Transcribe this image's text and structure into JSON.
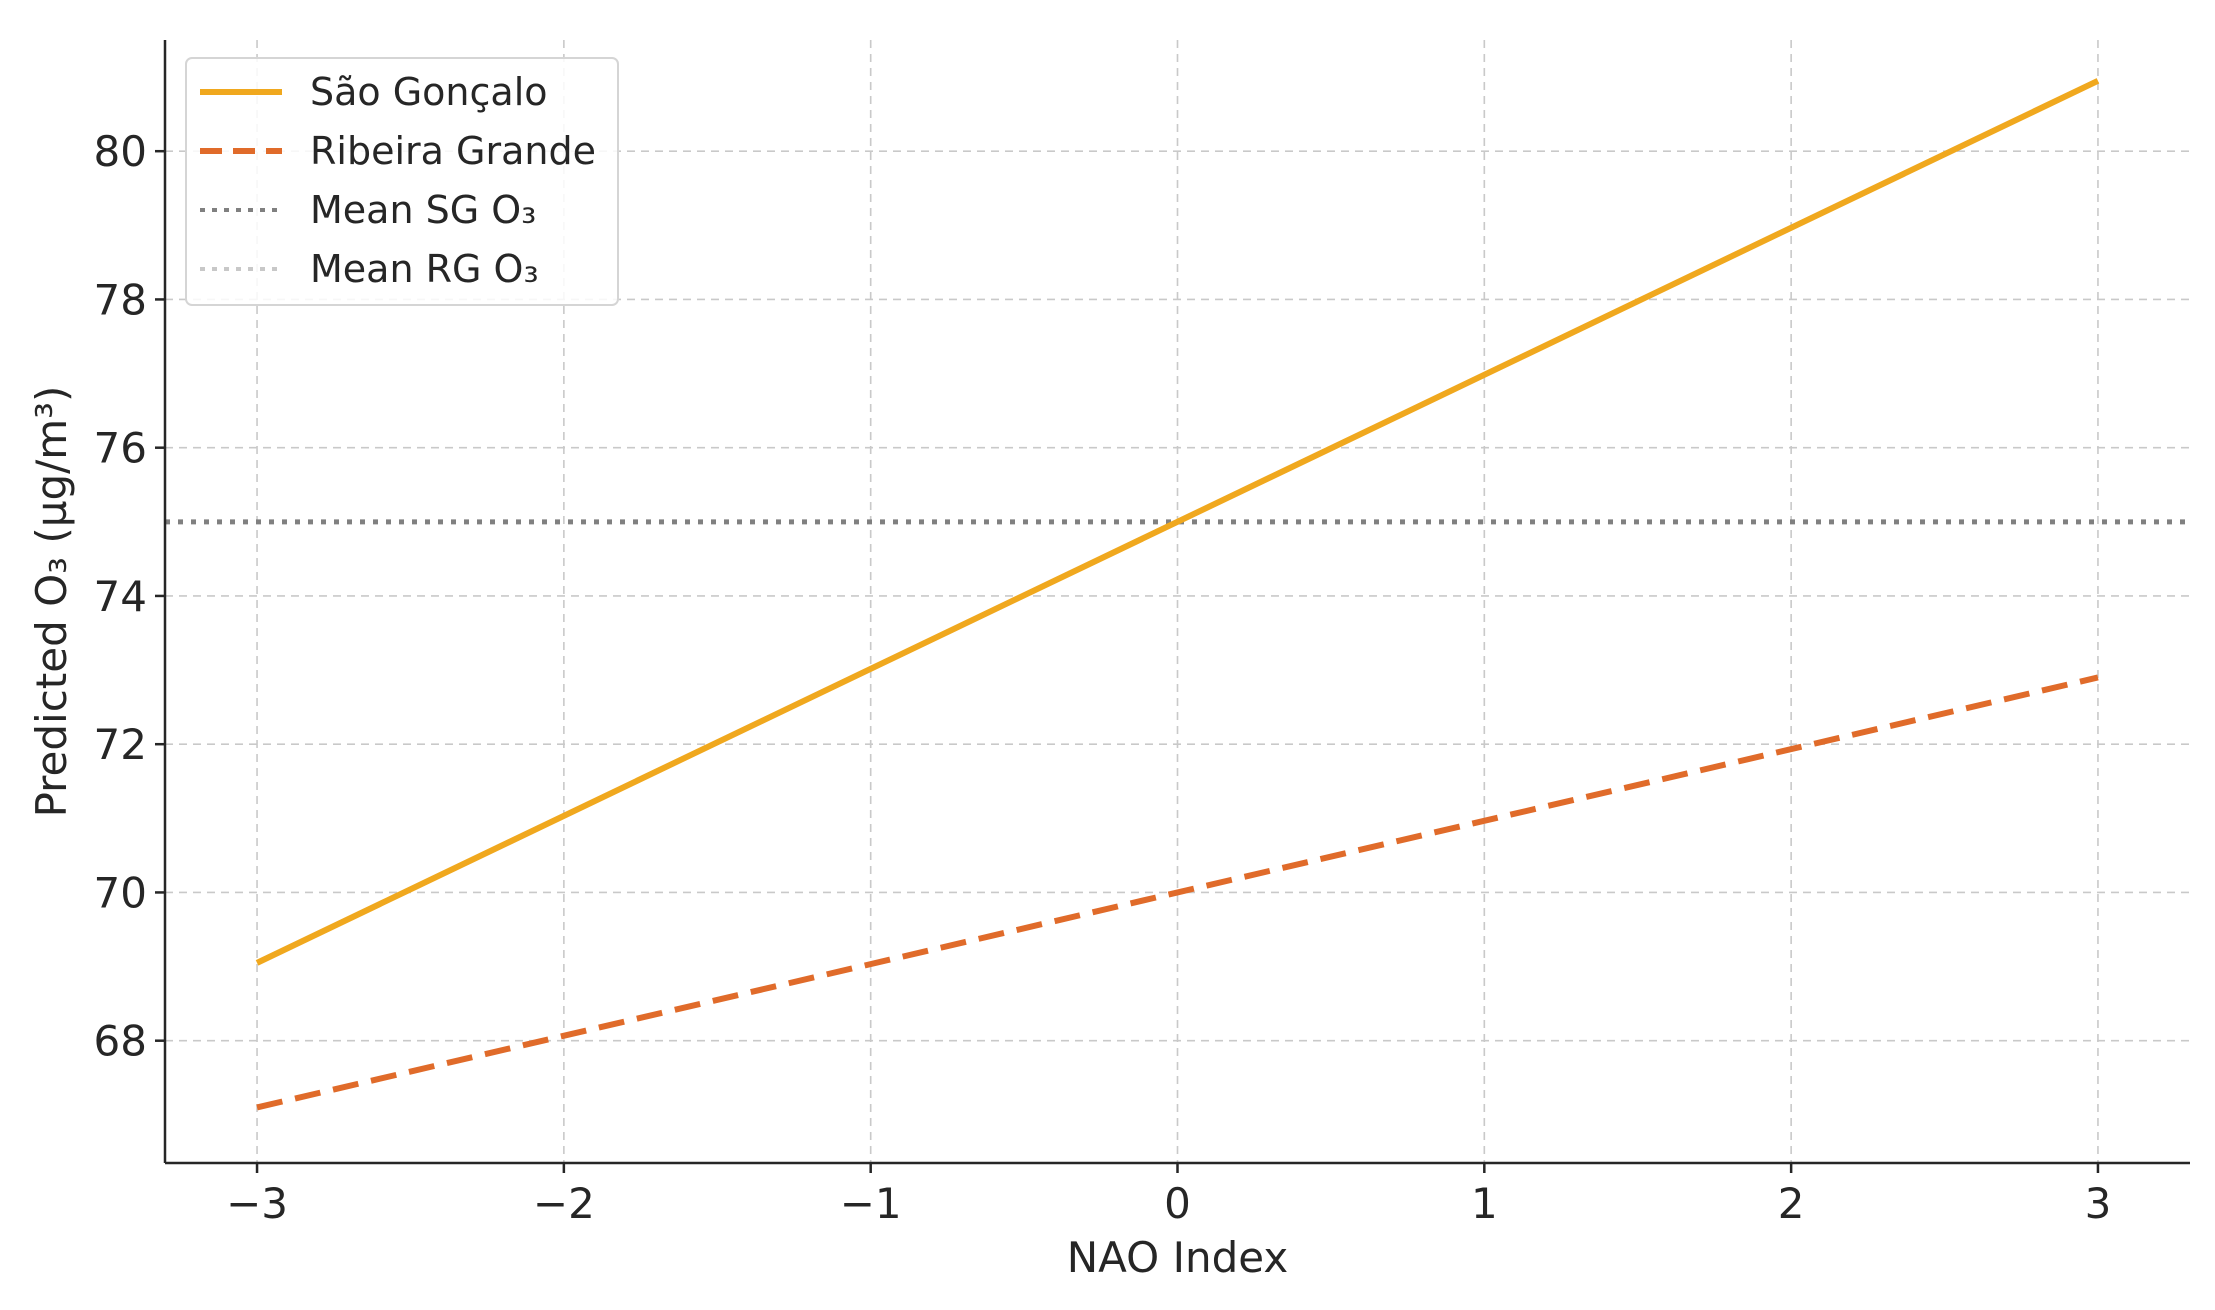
{
  "chart_data": {
    "type": "line",
    "title": "",
    "xlabel": "NAO Index",
    "ylabel": "Predicted O₃ (µg/m³)",
    "xlim": [
      -3.3,
      3.3
    ],
    "ylim": [
      66.35,
      81.5
    ],
    "x_ticks": [
      -3,
      -2,
      -1,
      0,
      1,
      2,
      3
    ],
    "x_tick_labels": [
      "−3",
      "−2",
      "−1",
      "0",
      "1",
      "2",
      "3"
    ],
    "y_ticks": [
      68,
      70,
      72,
      74,
      76,
      78,
      80
    ],
    "y_tick_labels": [
      "68",
      "70",
      "72",
      "74",
      "76",
      "78",
      "80"
    ],
    "grid": true,
    "legend_position": "top-left",
    "series": [
      {
        "name": "São Gonçalo",
        "x": [
          -3,
          3
        ],
        "y": [
          69.05,
          80.95
        ],
        "color": "#f0a81e",
        "style": "solid"
      },
      {
        "name": "Ribeira Grande",
        "x": [
          -3,
          3
        ],
        "y": [
          67.1,
          72.9
        ],
        "color": "#e06b2a",
        "style": "dashed"
      }
    ],
    "reference_lines": [
      {
        "name": "Mean SG O₃",
        "y": 75.0,
        "color": "#808080",
        "style": "dotted",
        "visible": true
      },
      {
        "name": "Mean RG O₃",
        "y": 70.0,
        "color": "#c8c8c8",
        "style": "dotted",
        "visible": false
      }
    ]
  }
}
